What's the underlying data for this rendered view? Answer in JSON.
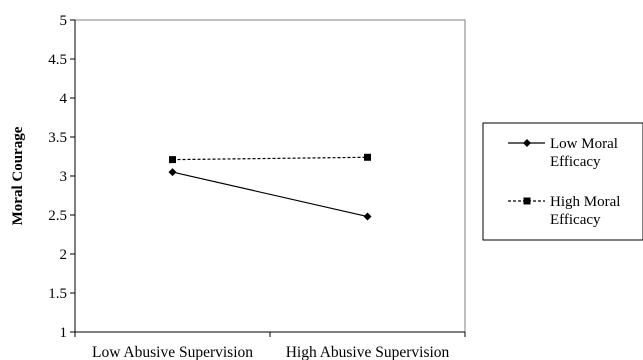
{
  "chart_data": {
    "type": "line",
    "title": "",
    "xlabel": "",
    "ylabel": "Moral Courage",
    "categories": [
      "Low Abusive Supervision",
      "High Abusive Supervision"
    ],
    "ylim": [
      1,
      5
    ],
    "yticks": [
      "1",
      "1.5",
      "2",
      "2.5",
      "3",
      "3.5",
      "4",
      "4.5",
      "5"
    ],
    "grid": false,
    "legend_position": "right",
    "series": [
      {
        "name": "Low Moral Efficacy",
        "legend_lines": [
          "Low Moral",
          "Efficacy"
        ],
        "values": [
          3.05,
          2.48
        ],
        "line": "solid",
        "marker": "diamond",
        "color": "#000000"
      },
      {
        "name": "High Moral Efficacy",
        "legend_lines": [
          "High Moral",
          "Efficacy"
        ],
        "values": [
          3.21,
          3.24
        ],
        "line": "dashed",
        "marker": "square",
        "color": "#000000"
      }
    ]
  }
}
